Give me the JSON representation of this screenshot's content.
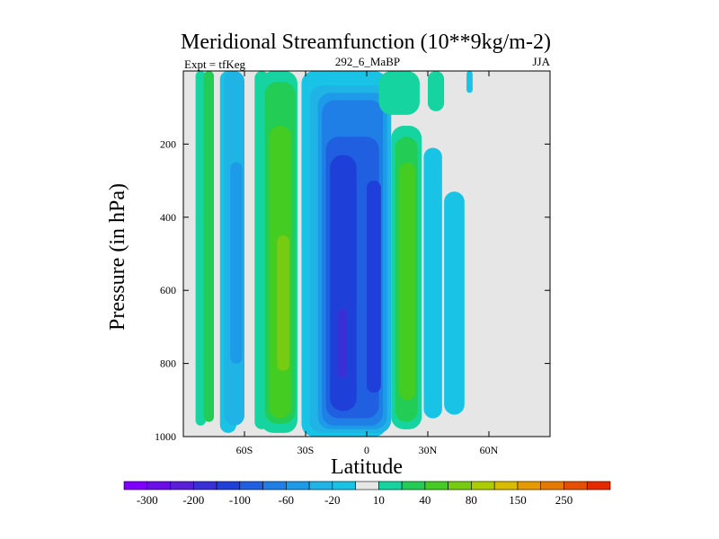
{
  "chart_data": {
    "type": "contour",
    "title": "Meridional Streamfunction (10**9kg/m-2)",
    "left_string": "Expt = tfKeg",
    "center_string": "292_6_MaBP",
    "right_string": "JJA",
    "xlabel": "Latitude",
    "ylabel": "Pressure (in hPa)",
    "xlim": [
      -90,
      90
    ],
    "ylim": [
      1000,
      0
    ],
    "x_ticks": [
      {
        "value": -60,
        "label": "60S"
      },
      {
        "value": -30,
        "label": "30S"
      },
      {
        "value": 0,
        "label": "0"
      },
      {
        "value": 30,
        "label": "30N"
      },
      {
        "value": 60,
        "label": "60N"
      }
    ],
    "y_ticks": [
      {
        "value": 200,
        "label": "200"
      },
      {
        "value": 400,
        "label": "400"
      },
      {
        "value": 600,
        "label": "600"
      },
      {
        "value": 800,
        "label": "800"
      },
      {
        "value": 1000,
        "label": "1000"
      }
    ],
    "levels": [
      -300,
      -250,
      -200,
      -150,
      -100,
      -80,
      -60,
      -40,
      -20,
      -10,
      10,
      20,
      40,
      60,
      80,
      100,
      150,
      200,
      250,
      300
    ],
    "colorbar_labels": [
      {
        "value": -300,
        "label": "-300"
      },
      {
        "value": -200,
        "label": "-200"
      },
      {
        "value": -100,
        "label": "-100"
      },
      {
        "value": -60,
        "label": "-60"
      },
      {
        "value": -20,
        "label": "-20"
      },
      {
        "value": 10,
        "label": "10"
      },
      {
        "value": 40,
        "label": "40"
      },
      {
        "value": 80,
        "label": "80"
      },
      {
        "value": 150,
        "label": "150"
      },
      {
        "value": 250,
        "label": "250"
      }
    ],
    "colors": [
      "#7f00ff",
      "#6a0fe8",
      "#5a1ed9",
      "#3a2fd6",
      "#1e40d8",
      "#1f5fe0",
      "#1f7fe6",
      "#1d9be8",
      "#1fb3e6",
      "#19c3e6",
      "#e6e6e6",
      "#15d4a0",
      "#22cc55",
      "#44cc22",
      "#77cc11",
      "#aacc00",
      "#d9bb00",
      "#e69a00",
      "#e67a00",
      "#e64f00",
      "#e62a00"
    ],
    "background_color": "#e6e6e6",
    "cells": [
      {
        "lon_min": -84,
        "lon_max": -79,
        "p_top": 0,
        "p_bottom": 970,
        "value": 12
      },
      {
        "lon_min": -80,
        "lon_max": -75,
        "p_top": 0,
        "p_bottom": 960,
        "value": 30
      },
      {
        "lon_min": -72,
        "lon_max": -64,
        "p_top": 0,
        "p_bottom": 990,
        "value": -20
      },
      {
        "lon_min": -70,
        "lon_max": -60,
        "p_top": 0,
        "p_bottom": 970,
        "value": -40
      },
      {
        "lon_min": -67,
        "lon_max": -61,
        "p_top": 250,
        "p_bottom": 800,
        "value": -60
      },
      {
        "lon_min": -55,
        "lon_max": -48,
        "p_top": 0,
        "p_bottom": 980,
        "value": 12
      },
      {
        "lon_min": -52,
        "lon_max": -34,
        "p_top": 0,
        "p_bottom": 990,
        "value": 15
      },
      {
        "lon_min": -50,
        "lon_max": -35,
        "p_top": 30,
        "p_bottom": 965,
        "value": 25
      },
      {
        "lon_min": -48,
        "lon_max": -37,
        "p_top": 150,
        "p_bottom": 950,
        "value": 40
      },
      {
        "lon_min": -44,
        "lon_max": -38,
        "p_top": 450,
        "p_bottom": 820,
        "value": 60
      },
      {
        "lon_min": -32,
        "lon_max": 10,
        "p_top": 0,
        "p_bottom": 1000,
        "value": -15
      },
      {
        "lon_min": -28,
        "lon_max": 12,
        "p_top": 40,
        "p_bottom": 990,
        "value": -30
      },
      {
        "lon_min": -24,
        "lon_max": 10,
        "p_top": 60,
        "p_bottom": 980,
        "value": -50
      },
      {
        "lon_min": -22,
        "lon_max": 8,
        "p_top": 80,
        "p_bottom": 970,
        "value": -70
      },
      {
        "lon_min": -20,
        "lon_max": 6,
        "p_top": 180,
        "p_bottom": 950,
        "value": -90
      },
      {
        "lon_min": -18,
        "lon_max": -5,
        "p_top": 230,
        "p_bottom": 930,
        "value": -110
      },
      {
        "lon_min": 0,
        "lon_max": 7,
        "p_top": 300,
        "p_bottom": 880,
        "value": -110
      },
      {
        "lon_min": -14,
        "lon_max": -10,
        "p_top": 650,
        "p_bottom": 840,
        "value": -160
      },
      {
        "lon_min": 6,
        "lon_max": 26,
        "p_top": 0,
        "p_bottom": 120,
        "value": 15
      },
      {
        "lon_min": 12,
        "lon_max": 27,
        "p_top": 150,
        "p_bottom": 980,
        "value": 15
      },
      {
        "lon_min": 14,
        "lon_max": 25,
        "p_top": 180,
        "p_bottom": 960,
        "value": 30
      },
      {
        "lon_min": 16,
        "lon_max": 24,
        "p_top": 250,
        "p_bottom": 900,
        "value": 45
      },
      {
        "lon_min": 30,
        "lon_max": 38,
        "p_top": 0,
        "p_bottom": 110,
        "value": 12
      },
      {
        "lon_min": 28,
        "lon_max": 37,
        "p_top": 210,
        "p_bottom": 950,
        "value": -15
      },
      {
        "lon_min": 38,
        "lon_max": 48,
        "p_top": 330,
        "p_bottom": 940,
        "value": -20
      },
      {
        "lon_min": 49,
        "lon_max": 52,
        "p_top": 0,
        "p_bottom": 60,
        "value": -12
      }
    ]
  }
}
